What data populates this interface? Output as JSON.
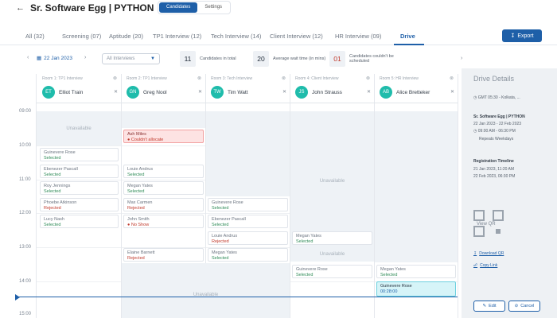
{
  "header": {
    "back_icon": "back-arrow-icon",
    "title": "Sr. Software Egg  |  PYTHON"
  },
  "top_tabs": [
    {
      "label": "Candidates",
      "active": true
    },
    {
      "label": "Settings",
      "active": false
    }
  ],
  "stage_tabs": [
    {
      "label": "All (32)"
    },
    {
      "label": "Screening (07)"
    },
    {
      "label": "Aptitude (20)"
    },
    {
      "label": "TP1 Interview (12)"
    },
    {
      "label": "Tech Interview (14)"
    },
    {
      "label": "Client Interview (12)"
    },
    {
      "label": "HR Interview (09)"
    },
    {
      "label": "Drive",
      "active": true
    }
  ],
  "export_label": "Export",
  "filter": {
    "date": "22 Jan 2023",
    "interviews_placeholder": "All Interviews"
  },
  "stats": [
    {
      "value": "11",
      "label": "Candidates in total"
    },
    {
      "value": "20",
      "label": "Average wait time (in mins)"
    },
    {
      "value": "01",
      "label": "Candidates couldn't be scheduled"
    }
  ],
  "times": [
    "09:00",
    "10:00",
    "11:00",
    "12:00",
    "13:00",
    "14:00",
    "15:00"
  ],
  "columns": [
    {
      "room": "Room 1: TP1 Interview",
      "initials": "ET",
      "name": "Elliot Train"
    },
    {
      "room": "Room 2: TP1 Interview",
      "initials": "GN",
      "name": "Greg Nool"
    },
    {
      "room": "Room 3: Tech Interview",
      "initials": "TW",
      "name": "Tim Watt"
    },
    {
      "room": "Room 4: Client Interview",
      "initials": "JS",
      "name": "John Strauss"
    },
    {
      "room": "Room 5: HR Interview",
      "initials": "AB",
      "name": "Alice Bretteker"
    }
  ],
  "unavailable_label": "Unavailable",
  "slots": {
    "c1": [
      {
        "name": "Guinevere Rose",
        "status": "Selected"
      },
      {
        "name": "Ebenezer Pascall",
        "status": "Selected"
      },
      {
        "name": "Roy Jennings",
        "status": "Selected"
      },
      {
        "name": "Phoebe Atkinson",
        "status": "Rejected"
      },
      {
        "name": "Lucy Nash",
        "status": "Selected"
      }
    ],
    "c2": [
      {
        "name": "Ash Miles",
        "status": "Couldn't allocate"
      },
      {
        "name": "Louie Andrus",
        "status": "Selected"
      },
      {
        "name": "Megan Yates",
        "status": "Selected"
      },
      {
        "name": "Max Carmen",
        "status": "Rejected"
      },
      {
        "name": "John Smith",
        "status": "No Show"
      },
      {
        "name": "Elaine Barnett",
        "status": "Rejected"
      }
    ],
    "c3": [
      {
        "name": "Guinevere Rose",
        "status": "Selected"
      },
      {
        "name": "Ebenezer Pascall",
        "status": "Selected"
      },
      {
        "name": "Louie Andrus",
        "status": "Rejected"
      },
      {
        "name": "Megan Yates",
        "status": "Selected"
      }
    ],
    "c4": [
      {
        "name": "Megan Yates",
        "status": "Selected"
      },
      {
        "name": "Guinevere Rose",
        "status": "Selected"
      }
    ],
    "c5": [
      {
        "name": "Megan Yates",
        "status": "Selected"
      },
      {
        "name": "Guinevere Rose",
        "status": "00:28:00"
      }
    ]
  },
  "panel": {
    "title": "Drive Details",
    "timezone": "GMT 05:30 - Kolkata, ...",
    "drive_name": "Sr. Software Egg  |  PYTHON",
    "drive_dates": "22 Jan 2023 - 22 Feb 2023",
    "drive_time": "09:00 AM - 06:30 PM",
    "repeats": "Repeats Weekdays",
    "reg_title": "Registration Timeline",
    "reg_start": "21 Jan 2023, 11:20 AM",
    "reg_end": "22 Feb 2023, 06:30 PM",
    "qr_label": "View QR",
    "download_qr": "Download QR",
    "copy_link": "Copy Link",
    "edit": "Edit",
    "cancel": "Cancel"
  },
  "colors": {
    "accent": "#1e5fa8",
    "avatar": "#1fbcab",
    "selected": "#2e8b57",
    "rejected": "#c0392b",
    "panel_bg": "#eef1f4"
  }
}
